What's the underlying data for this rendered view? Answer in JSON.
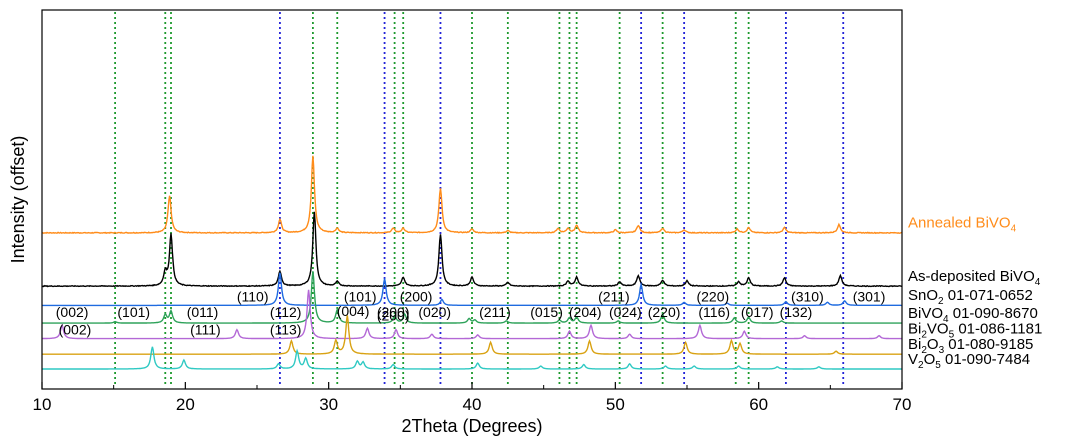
{
  "chart_data": {
    "type": "line",
    "xlabel": "2Theta (Degrees)",
    "ylabel": "Intensity (offset)",
    "xlim": [
      10,
      70
    ],
    "xticks": [
      10,
      20,
      30,
      40,
      50,
      60,
      70
    ],
    "grid": false,
    "legend": "right",
    "series": [
      {
        "name": "Annealed BiVO",
        "sub": "4",
        "color": "#FF8C1A",
        "offset": 9.2,
        "noise": 0.05,
        "peaks": [
          [
            18.9,
            2.5
          ],
          [
            26.6,
            0.9
          ],
          [
            28.9,
            5.2
          ],
          [
            30.6,
            0.3
          ],
          [
            34.5,
            0.3
          ],
          [
            35.2,
            0.3
          ],
          [
            37.8,
            3.0
          ],
          [
            40.0,
            0.25
          ],
          [
            42.5,
            0.15
          ],
          [
            46.0,
            0.3
          ],
          [
            46.7,
            0.3
          ],
          [
            47.3,
            0.5
          ],
          [
            50.0,
            0.2
          ],
          [
            51.6,
            0.5
          ],
          [
            53.3,
            0.3
          ],
          [
            54.8,
            0.2
          ],
          [
            58.5,
            0.25
          ],
          [
            59.3,
            0.35
          ],
          [
            61.8,
            0.35
          ],
          [
            65.6,
            0.55
          ]
        ]
      },
      {
        "name": "As-deposited BiVO",
        "sub": "4",
        "color": "#000000",
        "offset": 5.6,
        "noise": 0.05,
        "peaks": [
          [
            18.6,
            0.9
          ],
          [
            19.0,
            3.5
          ],
          [
            26.6,
            1.0
          ],
          [
            29.0,
            5.0
          ],
          [
            30.6,
            0.3
          ],
          [
            35.2,
            0.6
          ],
          [
            37.8,
            3.5
          ],
          [
            40.0,
            0.6
          ],
          [
            42.5,
            0.25
          ],
          [
            46.7,
            0.35
          ],
          [
            47.3,
            0.6
          ],
          [
            50.3,
            0.3
          ],
          [
            51.6,
            0.7
          ],
          [
            53.3,
            0.4
          ],
          [
            55.0,
            0.35
          ],
          [
            58.6,
            0.3
          ],
          [
            59.3,
            0.55
          ],
          [
            61.8,
            0.55
          ],
          [
            65.7,
            0.7
          ]
        ]
      },
      {
        "name": "SnO",
        "sub": "2",
        "suffix": " 01-071-0652",
        "color": "#1F6BE0",
        "offset": 4.3,
        "noise": 0.0,
        "peaks": [
          [
            26.6,
            2.2
          ],
          [
            33.9,
            1.8
          ],
          [
            37.9,
            0.4
          ],
          [
            51.8,
            1.4
          ],
          [
            54.8,
            0.2
          ],
          [
            57.8,
            0.15
          ],
          [
            61.9,
            0.25
          ],
          [
            64.8,
            0.2
          ],
          [
            66.0,
            0.3
          ]
        ]
      },
      {
        "name": "BiVO",
        "sub": "4",
        "suffix": " 01-090-8670",
        "color": "#2EA25A",
        "offset": 3.1,
        "noise": 0.0,
        "peaks": [
          [
            15.1,
            0.1
          ],
          [
            18.6,
            0.55
          ],
          [
            19.0,
            0.8
          ],
          [
            28.9,
            3.5
          ],
          [
            30.6,
            0.9
          ],
          [
            34.6,
            0.5
          ],
          [
            35.3,
            0.6
          ],
          [
            39.8,
            0.3
          ],
          [
            40.2,
            0.2
          ],
          [
            42.4,
            0.15
          ],
          [
            46.1,
            0.2
          ],
          [
            46.8,
            0.35
          ],
          [
            47.3,
            0.4
          ],
          [
            50.2,
            0.15
          ],
          [
            53.3,
            0.6
          ],
          [
            58.3,
            0.35
          ],
          [
            59.3,
            0.4
          ],
          [
            61.6,
            0.15
          ]
        ]
      },
      {
        "name": "Bi",
        "sub": "2",
        "mid": "VO",
        "sub2": "5",
        "suffix": " 01-086-1181",
        "color": "#B368D6",
        "offset": 2.05,
        "noise": 0.0,
        "peaks": [
          [
            11.4,
            0.9
          ],
          [
            23.6,
            0.6
          ],
          [
            28.6,
            3.3
          ],
          [
            32.7,
            0.7
          ],
          [
            34.7,
            0.6
          ],
          [
            37.2,
            0.3
          ],
          [
            40.4,
            0.25
          ],
          [
            46.8,
            0.5
          ],
          [
            48.3,
            0.9
          ],
          [
            51.0,
            0.3
          ],
          [
            55.9,
            0.9
          ],
          [
            59.0,
            0.5
          ],
          [
            63.2,
            0.2
          ],
          [
            68.4,
            0.2
          ]
        ]
      },
      {
        "name": "Bi",
        "sub": "2",
        "mid": "O",
        "sub2": "3",
        "suffix": " 01-080-9185",
        "color": "#D9A213",
        "offset": 1.0,
        "noise": 0.0,
        "peaks": [
          [
            27.4,
            0.9
          ],
          [
            30.5,
            0.9
          ],
          [
            31.3,
            2.6
          ],
          [
            41.3,
            0.8
          ],
          [
            48.2,
            0.9
          ],
          [
            54.9,
            0.8
          ],
          [
            58.1,
            0.9
          ],
          [
            58.7,
            0.7
          ],
          [
            65.4,
            0.2
          ]
        ]
      },
      {
        "name": "V",
        "sub": "2",
        "mid": "O",
        "sub2": "5",
        "suffix": " 01-090-7484",
        "color": "#2FC9C3",
        "offset": 0.0,
        "noise": 0.0,
        "peaks": [
          [
            17.7,
            1.5
          ],
          [
            19.9,
            0.6
          ],
          [
            26.5,
            0.35
          ],
          [
            27.8,
            1.2
          ],
          [
            28.4,
            0.7
          ],
          [
            32.0,
            0.5
          ],
          [
            32.4,
            0.45
          ],
          [
            34.5,
            0.3
          ],
          [
            40.4,
            0.4
          ],
          [
            44.8,
            0.2
          ],
          [
            47.8,
            0.3
          ],
          [
            51.0,
            0.35
          ],
          [
            53.5,
            0.2
          ],
          [
            55.5,
            0.2
          ],
          [
            58.6,
            0.2
          ],
          [
            61.3,
            0.15
          ],
          [
            64.2,
            0.15
          ]
        ]
      }
    ],
    "reference_lines": {
      "green": {
        "color": "#1E9A2E",
        "x": [
          15.1,
          18.6,
          19.0,
          28.9,
          30.6,
          34.6,
          35.2,
          40.0,
          42.5,
          46.1,
          46.8,
          47.3,
          50.3,
          53.3,
          58.4,
          59.3
        ]
      },
      "blue": {
        "color": "#2323D8",
        "x": [
          26.6,
          33.9,
          37.8,
          51.8,
          54.8,
          61.9,
          65.9
        ]
      }
    },
    "annotations": [
      {
        "text": "(110)",
        "x": 24.7,
        "row": "SnO2"
      },
      {
        "text": "(101)",
        "x": 32.2,
        "row": "SnO2"
      },
      {
        "text": "(200)",
        "x": 36.1,
        "row": "SnO2"
      },
      {
        "text": "(211)",
        "x": 49.9,
        "row": "SnO2"
      },
      {
        "text": "(220)",
        "x": 56.8,
        "row": "SnO2"
      },
      {
        "text": "(310)",
        "x": 63.4,
        "row": "SnO2"
      },
      {
        "text": "(301)",
        "x": 67.7,
        "row": "SnO2"
      },
      {
        "text": "(002)",
        "x": 12.1,
        "row": "BiVO4"
      },
      {
        "text": "(101)",
        "x": 16.4,
        "row": "BiVO4"
      },
      {
        "text": "(011)",
        "x": 21.2,
        "row": "BiVO4"
      },
      {
        "text": "(112)",
        "x": 27.0,
        "row": "BiVO4"
      },
      {
        "text": "(004)",
        "x": 31.7,
        "row": "BiVO4",
        "dy": -1
      },
      {
        "text": "(200)",
        "x": 34.5,
        "row": "BiVO4"
      },
      {
        "text": "(020)",
        "x": 37.4,
        "row": "BiVO4"
      },
      {
        "text": "(211)",
        "x": 41.6,
        "row": "BiVO4"
      },
      {
        "text": "(015)",
        "x": 45.2,
        "row": "BiVO4"
      },
      {
        "text": "(204)",
        "x": 47.9,
        "row": "BiVO4"
      },
      {
        "text": "(024)",
        "x": 50.7,
        "row": "BiVO4"
      },
      {
        "text": "(220)",
        "x": 53.4,
        "row": "BiVO4"
      },
      {
        "text": "(116)",
        "x": 56.9,
        "row": "BiVO4"
      },
      {
        "text": "(017)",
        "x": 59.9,
        "row": "BiVO4"
      },
      {
        "text": "(132)",
        "x": 62.6,
        "row": "BiVO4"
      },
      {
        "text": "(002)",
        "x": 12.3,
        "row": "Bi2VO5"
      },
      {
        "text": "(111)",
        "x": 21.4,
        "row": "Bi2VO5"
      },
      {
        "text": "(113)",
        "x": 27.0,
        "row": "Bi2VO5"
      },
      {
        "text": "(200)",
        "x": 34.5,
        "row": "Bi2VO5",
        "dy": -14
      }
    ]
  }
}
